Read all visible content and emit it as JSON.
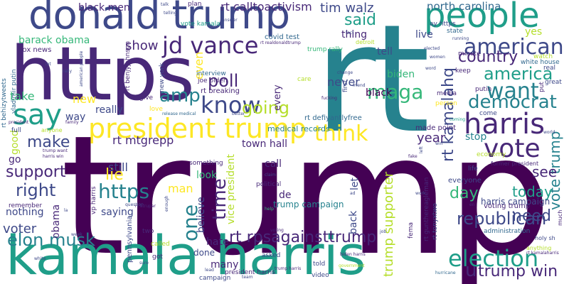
{
  "cloud": {
    "words": [
      {
        "text": "trump"
      },
      {
        "text": "rt"
      },
      {
        "text": "https"
      },
      {
        "text": "donald trump"
      },
      {
        "text": "kamala harris"
      },
      {
        "text": "people"
      },
      {
        "text": "say"
      },
      {
        "text": "president trump"
      },
      {
        "text": "harris"
      },
      {
        "text": "vote"
      },
      {
        "text": "american"
      },
      {
        "text": "want"
      },
      {
        "text": "election"
      },
      {
        "text": "america"
      },
      {
        "text": "know"
      },
      {
        "text": "think"
      },
      {
        "text": "democrat"
      },
      {
        "text": "maga"
      },
      {
        "text": "republican"
      },
      {
        "text": "need"
      },
      {
        "text": "going"
      },
      {
        "text": "jd vance"
      },
      {
        "text": "https"
      },
      {
        "text": "one"
      },
      {
        "text": "amp"
      },
      {
        "text": "time"
      },
      {
        "text": "country"
      },
      {
        "text": "elon musk"
      },
      {
        "text": "right"
      },
      {
        "text": "support"
      },
      {
        "text": "make"
      },
      {
        "text": "said"
      },
      {
        "text": "poll"
      },
      {
        "text": "rt kamalahq"
      },
      {
        "text": "vote trump"
      },
      {
        "text": "day"
      },
      {
        "text": "today"
      },
      {
        "text": "lie"
      },
      {
        "text": "rt rpsagainsttrump"
      },
      {
        "text": "trump supporter"
      },
      {
        "text": "trump win"
      },
      {
        "text": "u"
      },
      {
        "text": "voter"
      },
      {
        "text": "see"
      },
      {
        "text": "show"
      },
      {
        "text": "year"
      },
      {
        "text": "tim walz"
      },
      {
        "text": "north carolina"
      },
      {
        "text": "rt mtgrepp"
      },
      {
        "text": "rt calltoactivism"
      },
      {
        "text": "black men"
      },
      {
        "text": "barack obama"
      },
      {
        "text": "even"
      },
      {
        "text": "take"
      },
      {
        "text": "new"
      },
      {
        "text": "really"
      },
      {
        "text": "still"
      },
      {
        "text": "saying"
      },
      {
        "text": "nothing"
      },
      {
        "text": "obama"
      },
      {
        "text": "man"
      },
      {
        "text": "believe"
      },
      {
        "text": "hate"
      },
      {
        "text": "many"
      },
      {
        "text": "done"
      },
      {
        "text": "look"
      },
      {
        "text": "call"
      },
      {
        "text": "de"
      },
      {
        "text": "vice president"
      },
      {
        "text": "back"
      },
      {
        "text": "let"
      },
      {
        "text": "never"
      },
      {
        "text": "black"
      },
      {
        "text": "biden"
      },
      {
        "text": "tell"
      },
      {
        "text": "live"
      },
      {
        "text": "thing"
      },
      {
        "text": "town hall"
      },
      {
        "text": "way"
      },
      {
        "text": "go"
      },
      {
        "text": "good"
      },
      {
        "text": "harris campaign"
      },
      {
        "text": "trump campaign"
      },
      {
        "text": "yes"
      },
      {
        "text": "stop"
      },
      {
        "text": "every"
      },
      {
        "text": "rt breaking"
      },
      {
        "text": "joe biden"
      },
      {
        "text": "interview"
      },
      {
        "text": "trump rally"
      },
      {
        "text": "rt defiyantlyfree"
      },
      {
        "text": "medical records"
      },
      {
        "text": "made point"
      },
      {
        "text": "fox news"
      },
      {
        "text": "vladimir putin"
      },
      {
        "text": "rt behizytweets"
      },
      {
        "text": "covid test"
      },
      {
        "text": "vote kamala"
      },
      {
        "text": "state"
      },
      {
        "text": "white house"
      },
      {
        "text": "ay https"
      },
      {
        "text": "voting trump"
      },
      {
        "text": "rt gunthereagleman"
      },
      {
        "text": "rt tonyxtwo"
      },
      {
        "text": "administration"
      },
      {
        "text": "former president"
      },
      {
        "text": "everyone"
      },
      {
        "text": "life"
      },
      {
        "text": "something"
      },
      {
        "text": "political"
      },
      {
        "text": "pennsylvania"
      },
      {
        "text": "asked"
      },
      {
        "text": "told"
      },
      {
        "text": "video"
      },
      {
        "text": "fema"
      },
      {
        "text": "anything"
      },
      {
        "text": "much"
      },
      {
        "text": "holy sh"
      },
      {
        "text": "economy"
      },
      {
        "text": "great"
      },
      {
        "text": "minute"
      },
      {
        "text": "keep"
      },
      {
        "text": "putin"
      },
      {
        "text": "real"
      },
      {
        "text": "watch"
      },
      {
        "text": "media"
      },
      {
        "text": "person"
      },
      {
        "text": "come"
      },
      {
        "text": "put"
      },
      {
        "text": "first"
      },
      {
        "text": "care"
      },
      {
        "text": "give"
      },
      {
        "text": "love"
      },
      {
        "text": "plan"
      },
      {
        "text": "rt benjyjohnson"
      },
      {
        "text": "got"
      },
      {
        "text": "called"
      },
      {
        "text": "two"
      },
      {
        "text": "remember"
      },
      {
        "text": "full"
      },
      {
        "text": "anyone"
      },
      {
        "text": "new york"
      },
      {
        "text": "campaign"
      },
      {
        "text": "lead"
      },
      {
        "text": "president harris"
      },
      {
        "text": "team"
      },
      {
        "text": "detroit"
      },
      {
        "text": "fact"
      },
      {
        "text": "elected"
      },
      {
        "text": "running"
      },
      {
        "text": "word"
      },
      {
        "text": "women"
      },
      {
        "text": "change"
      },
      {
        "text": "friend"
      },
      {
        "text": "fucking"
      },
      {
        "text": "better"
      },
      {
        "text": "release medical"
      },
      {
        "text": "talk"
      },
      {
        "text": "telling"
      },
      {
        "text": "answer"
      },
      {
        "text": "lot"
      },
      {
        "text": "rally"
      },
      {
        "text": "american people"
      },
      {
        "text": "trump want"
      },
      {
        "text": "harris win"
      },
      {
        "text": "rt kamalaharris"
      },
      {
        "text": "biden harris"
      },
      {
        "text": "job"
      },
      {
        "text": "world"
      },
      {
        "text": "win"
      },
      {
        "text": "left"
      },
      {
        "text": "voting"
      },
      {
        "text": "claim"
      },
      {
        "text": "ad"
      },
      {
        "text": "work"
      },
      {
        "text": "la"
      },
      {
        "text": "week"
      },
      {
        "text": "white"
      },
      {
        "text": "sure"
      },
      {
        "text": "question"
      },
      {
        "text": "enough"
      },
      {
        "text": "rt atrupar"
      },
      {
        "text": "vp harris"
      },
      {
        "text": "government"
      },
      {
        "text": "hurricane"
      },
      {
        "text": "fake"
      },
      {
        "text": "rt realdonaldtrump"
      },
      {
        "text": "trump harris"
      },
      {
        "text": "en"
      },
      {
        "text": "family"
      },
      {
        "text": "help"
      },
      {
        "text": "coming"
      },
      {
        "text": "president"
      }
    ]
  }
}
